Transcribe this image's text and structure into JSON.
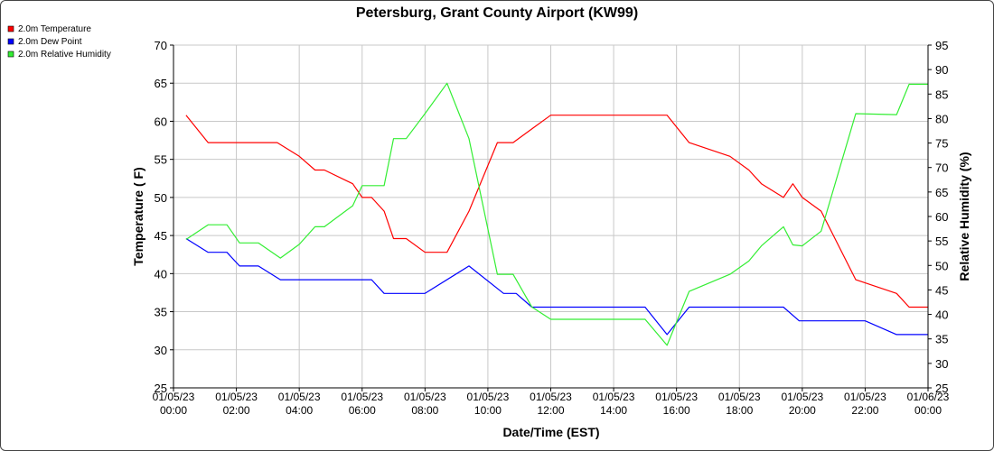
{
  "chart_data": {
    "type": "line",
    "title": "Petersburg, Grant County Airport (KW99)",
    "xlabel": "Date/Time (EST)",
    "ylabel": "Temperature ( F)",
    "y2label": "Relative Humidity (%)",
    "xlim": [
      0,
      24
    ],
    "ylim": [
      25,
      70
    ],
    "y2lim": [
      25,
      95
    ],
    "grid": true,
    "legend_position": "top-left",
    "x_ticks": [
      {
        "date": "01/05/23",
        "time": "00:00"
      },
      {
        "date": "01/05/23",
        "time": "02:00"
      },
      {
        "date": "01/05/23",
        "time": "04:00"
      },
      {
        "date": "01/05/23",
        "time": "06:00"
      },
      {
        "date": "01/05/23",
        "time": "08:00"
      },
      {
        "date": "01/05/23",
        "time": "10:00"
      },
      {
        "date": "01/05/23",
        "time": "12:00"
      },
      {
        "date": "01/05/23",
        "time": "14:00"
      },
      {
        "date": "01/05/23",
        "time": "16:00"
      },
      {
        "date": "01/05/23",
        "time": "18:00"
      },
      {
        "date": "01/05/23",
        "time": "20:00"
      },
      {
        "date": "01/05/23",
        "time": "22:00"
      },
      {
        "date": "01/06/23",
        "time": "00:00"
      }
    ],
    "y_ticks": [
      "25",
      "30",
      "35",
      "40",
      "45",
      "50",
      "55",
      "60",
      "65",
      "70"
    ],
    "y2_ticks": [
      "25",
      "30",
      "35",
      "40",
      "45",
      "50",
      "55",
      "60",
      "65",
      "70",
      "75",
      "80",
      "85",
      "90",
      "95"
    ],
    "series": [
      {
        "name": "2.0m Temperature",
        "color": "#ff0000",
        "axis": "left",
        "points": [
          [
            0.4,
            60.8
          ],
          [
            1.1,
            57.2
          ],
          [
            3.3,
            57.2
          ],
          [
            4.0,
            55.4
          ],
          [
            4.5,
            53.6
          ],
          [
            4.8,
            53.6
          ],
          [
            5.7,
            51.8
          ],
          [
            6.0,
            50.0
          ],
          [
            6.3,
            50.0
          ],
          [
            6.7,
            48.2
          ],
          [
            7.0,
            44.6
          ],
          [
            7.4,
            44.6
          ],
          [
            8.0,
            42.8
          ],
          [
            8.7,
            42.8
          ],
          [
            9.4,
            48.2
          ],
          [
            10.3,
            57.2
          ],
          [
            10.8,
            57.2
          ],
          [
            11.4,
            59.0
          ],
          [
            12.0,
            60.8
          ],
          [
            15.7,
            60.8
          ],
          [
            16.4,
            57.2
          ],
          [
            17.7,
            55.4
          ],
          [
            18.3,
            53.6
          ],
          [
            18.7,
            51.8
          ],
          [
            19.4,
            50.0
          ],
          [
            19.7,
            51.8
          ],
          [
            20.0,
            50.0
          ],
          [
            20.6,
            48.2
          ],
          [
            21.7,
            39.2
          ],
          [
            23.0,
            37.4
          ],
          [
            23.4,
            35.6
          ],
          [
            24.0,
            35.6
          ]
        ]
      },
      {
        "name": "2.0m Dew Point",
        "color": "#0000ff",
        "axis": "left",
        "points": [
          [
            0.4,
            44.6
          ],
          [
            1.1,
            42.8
          ],
          [
            1.7,
            42.8
          ],
          [
            2.1,
            41.0
          ],
          [
            2.7,
            41.0
          ],
          [
            3.4,
            39.2
          ],
          [
            6.3,
            39.2
          ],
          [
            6.7,
            37.4
          ],
          [
            8.0,
            37.4
          ],
          [
            9.4,
            41.0
          ],
          [
            10.5,
            37.4
          ],
          [
            10.9,
            37.4
          ],
          [
            11.4,
            35.6
          ],
          [
            15.0,
            35.6
          ],
          [
            15.7,
            32.0
          ],
          [
            16.4,
            35.6
          ],
          [
            19.4,
            35.6
          ],
          [
            19.9,
            33.8
          ],
          [
            22.0,
            33.8
          ],
          [
            23.0,
            32.0
          ],
          [
            24.0,
            32.0
          ]
        ]
      },
      {
        "name": "2.0m Relative Humidity",
        "color": "#33ee33",
        "axis": "right",
        "points": [
          [
            0.4,
            55.3
          ],
          [
            1.1,
            58.3
          ],
          [
            1.7,
            58.3
          ],
          [
            2.1,
            54.6
          ],
          [
            2.7,
            54.6
          ],
          [
            3.4,
            51.5
          ],
          [
            4.0,
            54.3
          ],
          [
            4.5,
            57.9
          ],
          [
            4.8,
            57.9
          ],
          [
            5.7,
            62.2
          ],
          [
            6.0,
            66.3
          ],
          [
            6.7,
            66.3
          ],
          [
            7.0,
            75.9
          ],
          [
            7.4,
            75.9
          ],
          [
            8.0,
            81.0
          ],
          [
            8.7,
            87.2
          ],
          [
            9.4,
            75.9
          ],
          [
            10.3,
            48.2
          ],
          [
            10.8,
            48.2
          ],
          [
            11.4,
            41.5
          ],
          [
            12.0,
            39.0
          ],
          [
            15.0,
            39.0
          ],
          [
            15.7,
            33.7
          ],
          [
            16.4,
            44.7
          ],
          [
            17.7,
            48.2
          ],
          [
            18.3,
            50.9
          ],
          [
            18.7,
            54.0
          ],
          [
            19.4,
            57.9
          ],
          [
            19.7,
            54.2
          ],
          [
            20.0,
            54.0
          ],
          [
            20.6,
            57.0
          ],
          [
            21.7,
            81.0
          ],
          [
            23.0,
            80.8
          ],
          [
            23.4,
            87.0
          ],
          [
            24.0,
            87.0
          ]
        ]
      }
    ]
  }
}
